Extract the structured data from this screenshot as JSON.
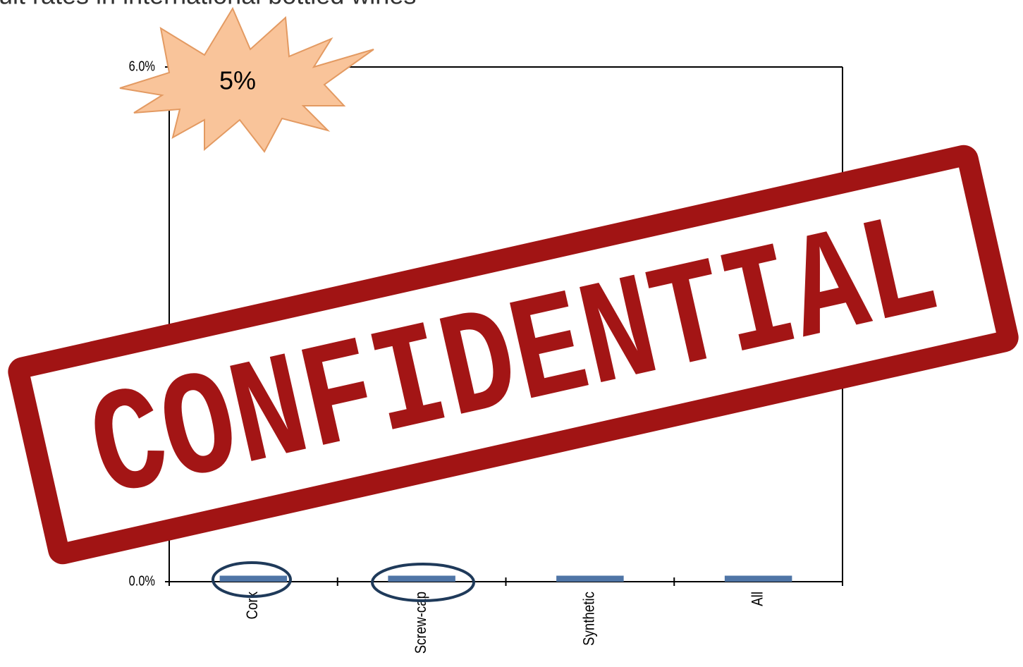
{
  "slide": {
    "title": "ult rates in international bottled wines",
    "burst_label": "5%",
    "stamp": "CONFIDENTIAL"
  },
  "chart_data": {
    "type": "bar",
    "categories": [
      "Cork",
      "Screw-cap",
      "Synthetic",
      "All"
    ],
    "values": [
      0.07,
      0.07,
      0.07,
      0.07
    ],
    "color": "#4f75a6",
    "ylim": [
      0,
      6
    ],
    "yticks": [
      {
        "value": 0,
        "label": "0.0%"
      },
      {
        "value": 6,
        "label": "6.0%"
      }
    ]
  }
}
